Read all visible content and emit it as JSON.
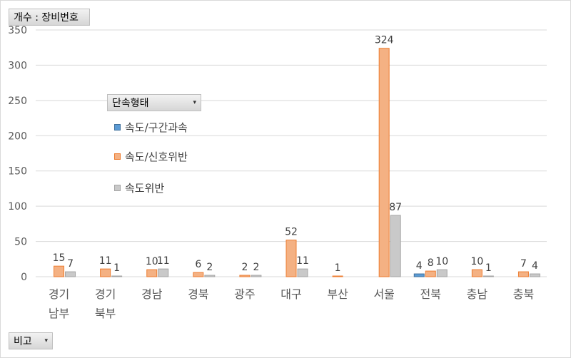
{
  "pivot": {
    "value_field": "개수 : 장비번호",
    "legend_field": "단속형태",
    "axis_field": "비고",
    "dropdown_glyph": "▾"
  },
  "chart_data": {
    "type": "bar",
    "categories": [
      [
        "경기",
        "남부"
      ],
      [
        "경기",
        "북부"
      ],
      [
        "경남"
      ],
      [
        "경북"
      ],
      [
        "광주"
      ],
      [
        "대구"
      ],
      [
        "부산"
      ],
      [
        "서울"
      ],
      [
        "전북"
      ],
      [
        "충남"
      ],
      [
        "충북"
      ]
    ],
    "series": [
      {
        "name": "속도/구간과속",
        "color": "#5b9bd5",
        "border": "#41719c",
        "values": [
          null,
          null,
          null,
          null,
          null,
          null,
          null,
          null,
          4,
          null,
          null
        ]
      },
      {
        "name": "속도/신호위반",
        "color": "#f4b183",
        "border": "#ed7d31",
        "values": [
          15,
          11,
          10,
          6,
          2,
          52,
          1,
          324,
          8,
          10,
          7
        ]
      },
      {
        "name": "속도위반",
        "color": "#c9c9c9",
        "border": "#a5a5a5",
        "values": [
          7,
          1,
          11,
          2,
          2,
          11,
          null,
          87,
          10,
          1,
          4
        ]
      }
    ],
    "ylim": [
      0,
      350
    ],
    "yticks": [
      0,
      50,
      100,
      150,
      200,
      250,
      300,
      350
    ],
    "grid": true,
    "legend_position": "left"
  }
}
